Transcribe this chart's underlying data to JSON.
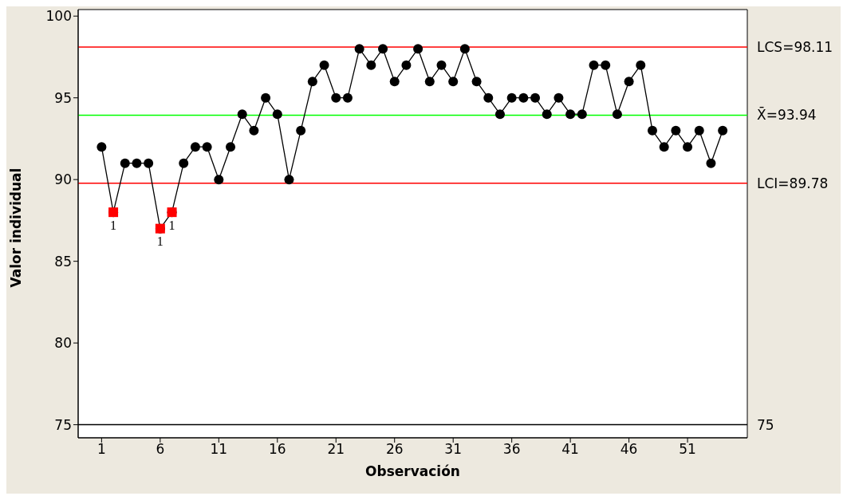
{
  "chart_data": {
    "type": "line",
    "xlabel": "Observación",
    "ylabel": "Valor individual",
    "xlim": [
      -1,
      56.1
    ],
    "xticks": [
      1,
      6,
      11,
      16,
      21,
      26,
      31,
      36,
      41,
      46,
      51
    ],
    "ylim": [
      74.2,
      100.4
    ],
    "yticks": [
      75,
      80,
      85,
      90,
      95,
      100
    ],
    "grid": false,
    "legend": false,
    "series": [
      {
        "color": "#000000",
        "marker": "circle",
        "x": [
          1,
          2,
          3,
          4,
          5,
          6,
          7,
          8,
          9,
          10,
          11,
          12,
          13,
          14,
          15,
          16,
          17,
          18,
          19,
          20,
          21,
          22,
          23,
          24,
          25,
          26,
          27,
          28,
          29,
          30,
          31,
          32,
          33,
          34,
          35,
          36,
          37,
          38,
          39,
          40,
          41,
          42,
          43,
          44,
          45,
          46,
          47,
          48,
          49,
          50,
          51,
          52,
          53,
          54
        ],
        "values": [
          92,
          88,
          91,
          91,
          91,
          87,
          88,
          91,
          92,
          92,
          90,
          92,
          94,
          93,
          95,
          94,
          90,
          93,
          96,
          97,
          95,
          95,
          98,
          97,
          98,
          96,
          97,
          98,
          96,
          97,
          96,
          98,
          96,
          95,
          94,
          95,
          95,
          95,
          94,
          95,
          94,
          94,
          97,
          97,
          94,
          96,
          97,
          93,
          92,
          93,
          92,
          93,
          91,
          93
        ]
      },
      {
        "type": "scatter",
        "color": "#ff0000",
        "marker": "square",
        "x": [
          2,
          6,
          7
        ],
        "values": [
          88,
          87,
          88
        ]
      }
    ],
    "ref_lines": [
      {
        "axis": "y",
        "value": 98.11,
        "label": "LCS=98.11",
        "color": "#ff0000"
      },
      {
        "axis": "y",
        "value": 93.94,
        "label": "X̄=93.94",
        "color": "#00ff00"
      },
      {
        "axis": "y",
        "value": 89.78,
        "label": "LCI=89.78",
        "color": "#ff0000"
      },
      {
        "axis": "y",
        "value": 75,
        "label": "75",
        "color": "#000000"
      }
    ],
    "annotations": [
      {
        "text": "1",
        "x": 2,
        "y": 88
      },
      {
        "text": "1",
        "x": 6,
        "y": 87
      },
      {
        "text": "1",
        "x": 7,
        "y": 88
      }
    ]
  }
}
